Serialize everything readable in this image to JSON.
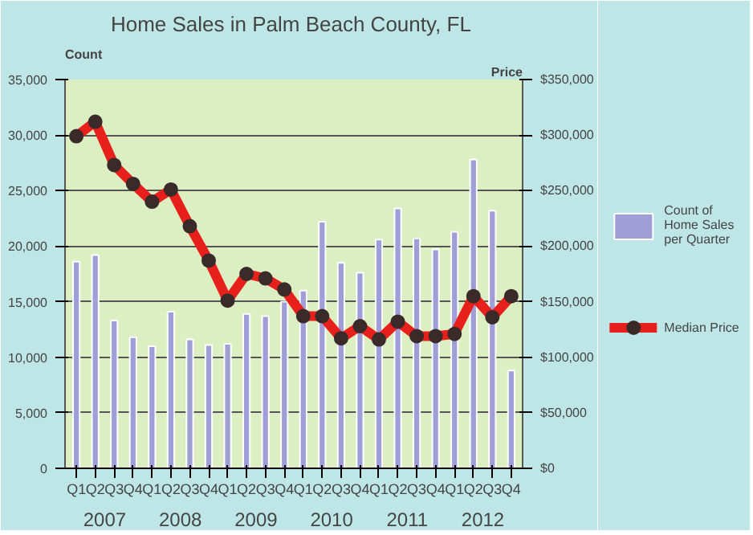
{
  "chart_data": {
    "type": "bar",
    "title": "Home Sales in Palm Beach County,  FL",
    "categories": [
      "Q1",
      "Q2",
      "Q3",
      "Q4",
      "Q1",
      "Q2",
      "Q3",
      "Q4",
      "Q1",
      "Q2",
      "Q3",
      "Q4",
      "Q1",
      "Q2",
      "Q3",
      "Q4",
      "Q1",
      "Q2",
      "Q3",
      "Q4",
      "Q1",
      "Q2",
      "Q3",
      "Q4"
    ],
    "ylabel": "Count",
    "y2label": "Price",
    "series": [
      {
        "name": "Count of Home Sales per Quarter",
        "color": "#a09ed6",
        "values": [
          18600,
          19200,
          13300,
          11800,
          11000,
          14100,
          11600,
          11100,
          11200,
          13900,
          13700,
          15000,
          16000,
          22200,
          18500,
          17600,
          20600,
          23400,
          20700,
          19700,
          21300,
          27800,
          23200,
          8800
        ]
      },
      {
        "name": "Median Price",
        "type": "line",
        "axis": "y2",
        "color": "#e8201c",
        "marker": "circle",
        "line_style": "solid",
        "values": [
          299000,
          312000,
          273000,
          256000,
          240000,
          251000,
          218000,
          187000,
          151000,
          175000,
          171000,
          161000,
          137000,
          137000,
          117000,
          128000,
          116000,
          132000,
          119000,
          119000,
          121000,
          155000,
          136000,
          155000
        ]
      }
    ],
    "ylim": [
      0,
      35000
    ],
    "yticks": [
      {
        "value": 0,
        "label": "0"
      },
      {
        "value": 5000,
        "label": "5,000"
      },
      {
        "value": 10000,
        "label": "10,000"
      },
      {
        "value": 15000,
        "label": "15,000"
      },
      {
        "value": 20000,
        "label": "20,000"
      },
      {
        "value": 25000,
        "label": "25,000"
      },
      {
        "value": 30000,
        "label": "30,000"
      },
      {
        "value": 35000,
        "label": "35,000"
      }
    ],
    "y2lim": [
      0,
      350000
    ],
    "y2ticks": [
      {
        "value": 0,
        "label": "$0"
      },
      {
        "value": 50000,
        "label": "$50,000"
      },
      {
        "value": 100000,
        "label": "$100,000"
      },
      {
        "value": 150000,
        "label": "$150,000"
      },
      {
        "value": 200000,
        "label": "$200,000"
      },
      {
        "value": 250000,
        "label": "$250,000"
      },
      {
        "value": 300000,
        "label": "$300,000"
      },
      {
        "value": 350000,
        "label": "$350,000"
      }
    ],
    "annotations": [
      "2007",
      "2008",
      "2009",
      "2010",
      "2011",
      "2012"
    ],
    "grid": "y",
    "legend": "right"
  }
}
